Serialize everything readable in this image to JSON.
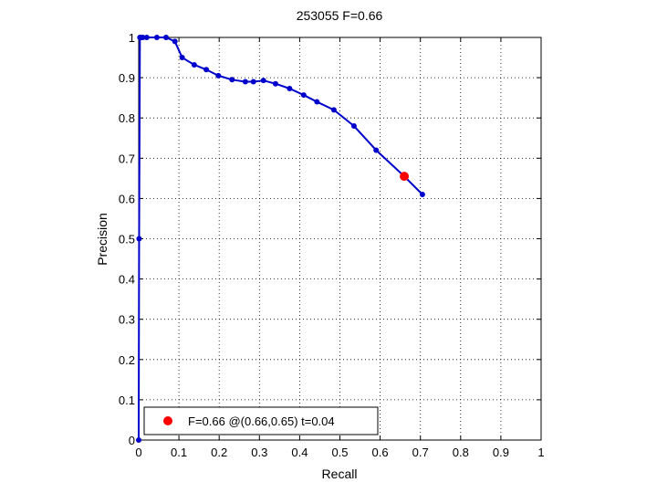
{
  "chart_data": {
    "type": "line",
    "title": "253055 F=0.66",
    "xlabel": "Recall",
    "ylabel": "Precision",
    "xlim": [
      0,
      1
    ],
    "ylim": [
      0,
      1
    ],
    "grid": true,
    "x_ticks": [
      "0",
      "0.1",
      "0.2",
      "0.3",
      "0.4",
      "0.5",
      "0.6",
      "0.7",
      "0.8",
      "0.9",
      "1"
    ],
    "y_ticks": [
      "0",
      "0.1",
      "0.2",
      "0.3",
      "0.4",
      "0.5",
      "0.6",
      "0.7",
      "0.8",
      "0.9",
      "1"
    ],
    "series": [
      {
        "color": "#0000cc",
        "x": [
          0,
          0.001,
          0.003,
          0.006,
          0.01,
          0.02,
          0.045,
          0.068,
          0.09,
          0.108,
          0.138,
          0.168,
          0.198,
          0.232,
          0.265,
          0.285,
          0.31,
          0.34,
          0.375,
          0.41,
          0.443,
          0.485,
          0.535,
          0.59,
          0.66,
          0.705
        ],
        "y": [
          0,
          0.5,
          1.0,
          1.0,
          1.0,
          1.0,
          1.0,
          1.0,
          0.99,
          0.95,
          0.932,
          0.92,
          0.905,
          0.895,
          0.89,
          0.89,
          0.893,
          0.885,
          0.873,
          0.857,
          0.84,
          0.82,
          0.78,
          0.72,
          0.655,
          0.61
        ]
      }
    ],
    "best_point": {
      "color": "#ff0000",
      "x": 0.66,
      "y": 0.655,
      "label": "F=0.66 @(0.66,0.65) t=0.04"
    },
    "legend": {
      "placement": "bottom-left"
    }
  }
}
